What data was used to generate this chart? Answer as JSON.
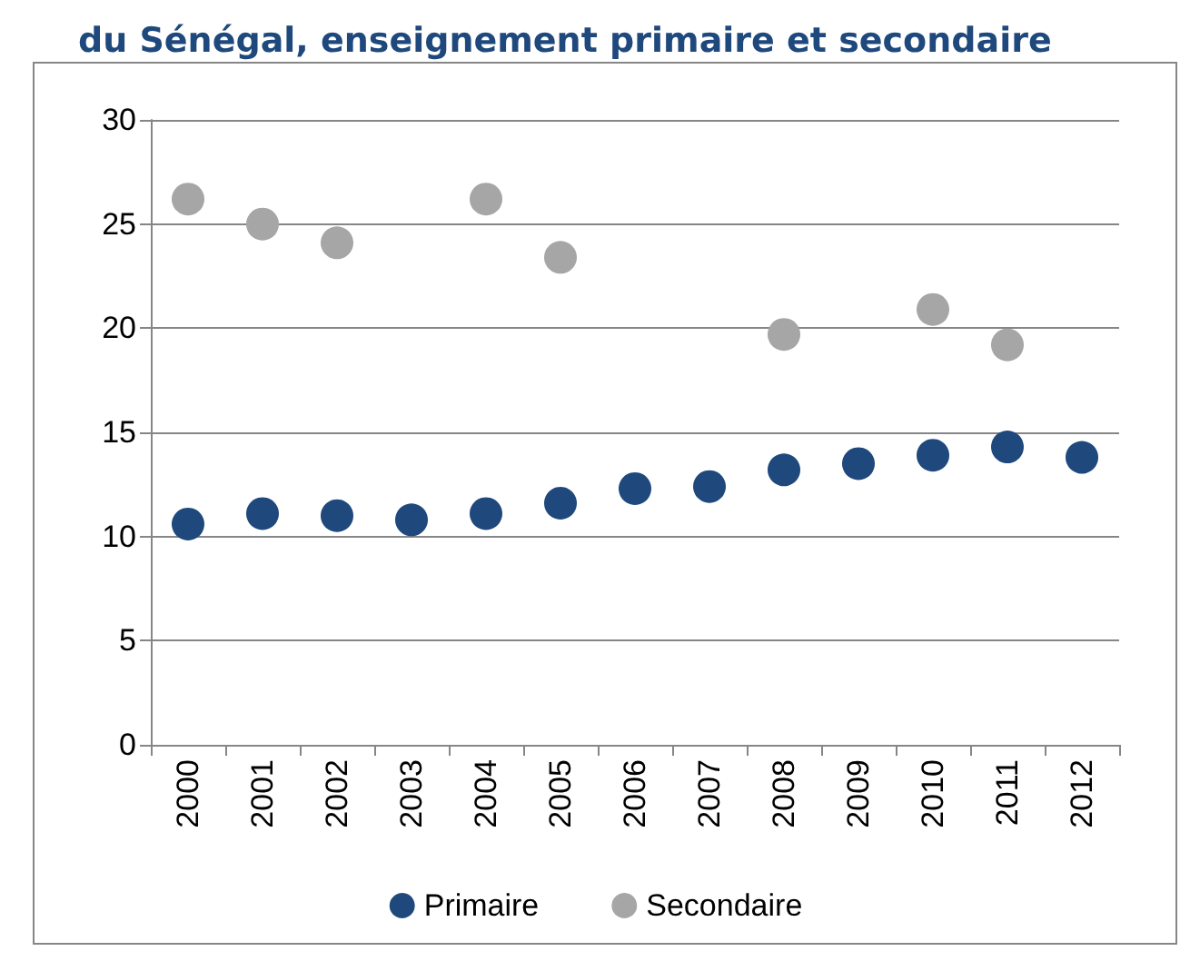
{
  "chart_data": {
    "type": "scatter",
    "title": "du Sénégal, enseignement primaire et secondaire",
    "categories": [
      "2000",
      "2001",
      "2002",
      "2003",
      "2004",
      "2005",
      "2006",
      "2007",
      "2008",
      "2009",
      "2010",
      "2011",
      "2012"
    ],
    "series": [
      {
        "name": "Primaire",
        "color": "#1f497d",
        "values": [
          10.6,
          11.1,
          11.0,
          10.8,
          11.1,
          11.6,
          12.3,
          12.4,
          13.2,
          13.5,
          13.9,
          14.3,
          13.8
        ]
      },
      {
        "name": "Secondaire",
        "color": "#a6a6a6",
        "values": [
          26.2,
          25.0,
          24.1,
          null,
          26.2,
          23.4,
          null,
          null,
          19.7,
          null,
          20.9,
          19.2,
          null
        ]
      }
    ],
    "ylim": [
      0,
      30
    ],
    "yticks": [
      0,
      5,
      10,
      15,
      20,
      25,
      30
    ],
    "grid": "y",
    "legend": "bottom",
    "marker": "circle"
  }
}
